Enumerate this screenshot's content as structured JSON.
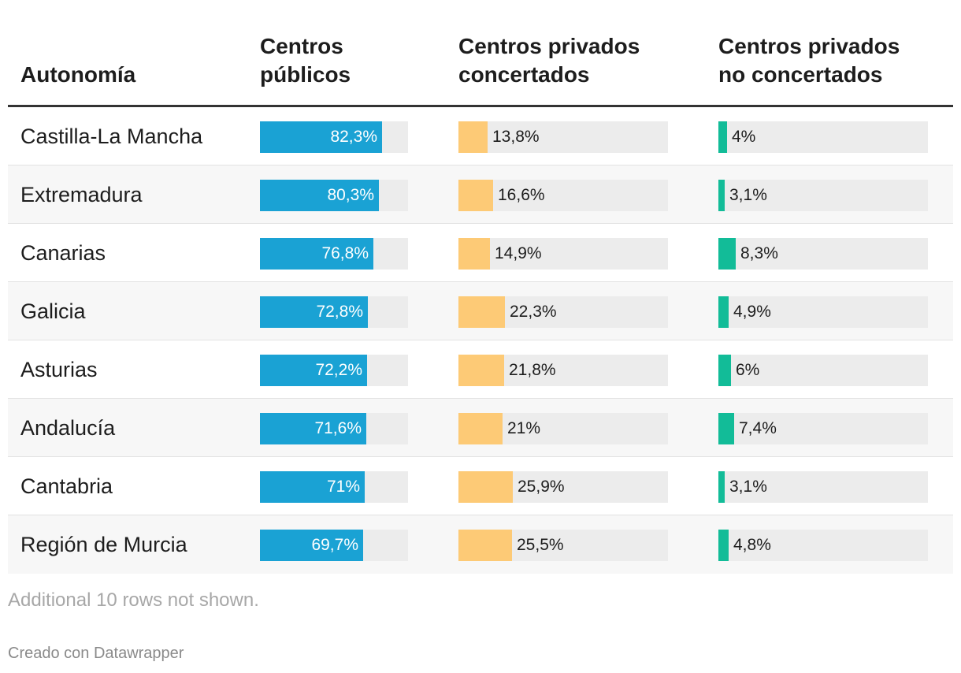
{
  "chart_data": {
    "type": "table",
    "columns": [
      "Autonomía",
      "Centros públicos",
      "Centros privados concertados",
      "Centros privados no concertados"
    ],
    "header_lines": [
      [
        "Autonomía"
      ],
      [
        "Centros",
        "públicos"
      ],
      [
        "Centros privados",
        "concertados"
      ],
      [
        "Centros privados",
        "no concertados"
      ]
    ],
    "unit": "%",
    "max_value": 100,
    "colors": {
      "publicos": "#1aa2d4",
      "concertados": "#fdca76",
      "no_concertados": "#12bc98",
      "track": "#ececec"
    },
    "rows": [
      {
        "name": "Castilla-La Mancha",
        "publicos": 82.3,
        "concertados": 13.8,
        "no_concertados": 4,
        "labels": [
          "82,3%",
          "13,8%",
          "4%"
        ]
      },
      {
        "name": "Extremadura",
        "publicos": 80.3,
        "concertados": 16.6,
        "no_concertados": 3.1,
        "labels": [
          "80,3%",
          "16,6%",
          "3,1%"
        ]
      },
      {
        "name": "Canarias",
        "publicos": 76.8,
        "concertados": 14.9,
        "no_concertados": 8.3,
        "labels": [
          "76,8%",
          "14,9%",
          "8,3%"
        ]
      },
      {
        "name": "Galicia",
        "publicos": 72.8,
        "concertados": 22.3,
        "no_concertados": 4.9,
        "labels": [
          "72,8%",
          "22,3%",
          "4,9%"
        ]
      },
      {
        "name": "Asturias",
        "publicos": 72.2,
        "concertados": 21.8,
        "no_concertados": 6,
        "labels": [
          "72,2%",
          "21,8%",
          "6%"
        ]
      },
      {
        "name": "Andalucía",
        "publicos": 71.6,
        "concertados": 21,
        "no_concertados": 7.4,
        "labels": [
          "71,6%",
          "21%",
          "7,4%"
        ]
      },
      {
        "name": "Cantabria",
        "publicos": 71,
        "concertados": 25.9,
        "no_concertados": 3.1,
        "labels": [
          "71%",
          "25,9%",
          "3,1%"
        ]
      },
      {
        "name": "Región de Murcia",
        "publicos": 69.7,
        "concertados": 25.5,
        "no_concertados": 4.8,
        "labels": [
          "69,7%",
          "25,5%",
          "4,8%"
        ]
      }
    ]
  },
  "footer": {
    "note": "Additional 10 rows not shown.",
    "credit": "Creado con Datawrapper"
  }
}
